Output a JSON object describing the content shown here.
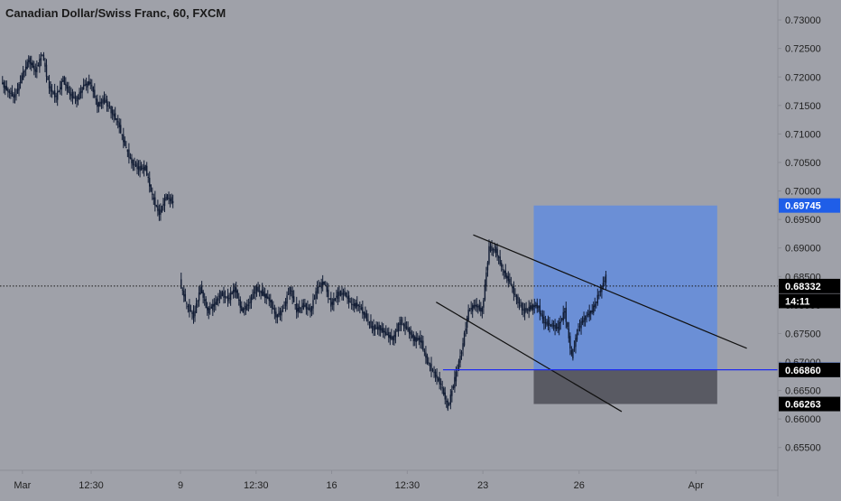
{
  "chart_data": {
    "type": "line",
    "title": "Canadian Dollar/Swiss Franc, 60, FXCM",
    "style": "candlestick",
    "colors": {
      "background": "#9fa1a9",
      "candle": "#101b33",
      "profit_zone": "#6b8fd6",
      "loss_zone": "#595a63",
      "entry_line": "#1f2cf0",
      "trend_lines": "#111111",
      "label_dark": "#000000",
      "label_blue": "#1f5ee8",
      "label_text": "#ffffff",
      "axis_text": "#222222"
    },
    "y_axis": {
      "range": [
        0.651,
        0.7335
      ],
      "ticks": [
        "0.73000",
        "0.72500",
        "0.72000",
        "0.71500",
        "0.71000",
        "0.70500",
        "0.70000",
        "0.69500",
        "0.69000",
        "0.68500",
        "0.68000",
        "0.67500",
        "0.67000",
        "0.66500",
        "0.66000",
        "0.65500"
      ]
    },
    "x_axis": {
      "ticks": [
        {
          "label": "Mar",
          "index": 3
        },
        {
          "label": "12:30",
          "index": 13
        },
        {
          "label": "9",
          "index": 26
        },
        {
          "label": "12:30",
          "index": 37
        },
        {
          "label": "16",
          "index": 48
        },
        {
          "label": "12:30",
          "index": 59
        },
        {
          "label": "23",
          "index": 70
        },
        {
          "label": "26",
          "index": 84
        },
        {
          "label": "Apr",
          "index": 101
        }
      ],
      "total_slots": 112
    },
    "price_series": {
      "name": "CAD/CHF",
      "segments": [
        {
          "start_index": 0,
          "values": [
            0.719,
            0.7175,
            0.7165,
            0.72,
            0.723,
            0.721,
            0.724,
            0.718,
            0.7165,
            0.7195,
            0.717,
            0.716,
            0.7185,
            0.719,
            0.715,
            0.716,
            0.714,
            0.712,
            0.708,
            0.705,
            0.704,
            0.704,
            0.699,
            0.696,
            0.699,
            0.698
          ]
        },
        {
          "start_index": 26,
          "values": [
            0.684,
            0.68,
            0.678,
            0.683,
            0.679,
            0.68,
            0.682,
            0.681,
            0.683,
            0.679,
            0.68,
            0.683,
            0.682,
            0.681,
            0.678,
            0.679,
            0.683,
            0.679,
            0.68,
            0.679,
            0.683,
            0.684,
            0.68,
            0.682,
            0.682,
            0.68,
            0.68,
            0.678,
            0.676,
            0.676,
            0.675,
            0.674,
            0.677,
            0.676,
            0.674,
            0.674,
            0.67,
            0.668,
            0.666,
            0.662,
            0.667,
            0.672,
            0.679,
            0.68,
            0.679,
            0.69,
            0.6895,
            0.686,
            0.684,
            0.681,
            0.679,
            0.6795,
            0.68,
            0.677,
            0.6765,
            0.676,
            0.679,
            0.671,
            0.676,
            0.678,
            0.679,
            0.682,
            0.685
          ]
        }
      ]
    },
    "trend_lines": [
      {
        "from": {
          "index": 68.6,
          "value": 0.6923
        },
        "to": {
          "index": 108.4,
          "value": 0.6724
        }
      },
      {
        "from": {
          "index": 63.2,
          "value": 0.6805
        },
        "to": {
          "index": 90.2,
          "value": 0.6613
        }
      }
    ],
    "position": {
      "entry": 0.66864,
      "target": 0.69745,
      "stop": 0.66263,
      "start_index": 77.4,
      "end_index": 104.1,
      "entry_line_start_index": 64.2
    },
    "current_price": {
      "value": 0.68332,
      "countdown": "14:11"
    },
    "price_labels": [
      {
        "text": "0.69745",
        "value": 0.69745,
        "style": "blue"
      },
      {
        "text": "0.68332",
        "value": 0.68332,
        "style": "dark"
      },
      {
        "text": "14:11",
        "value": 0.6807,
        "style": "dark"
      },
      {
        "text": "0.66864",
        "value": 0.66864,
        "style": "blue"
      },
      {
        "text": "0.66860",
        "value": 0.6686,
        "style": "dark"
      },
      {
        "text": "0.66263",
        "value": 0.66263,
        "style": "dark"
      }
    ]
  }
}
